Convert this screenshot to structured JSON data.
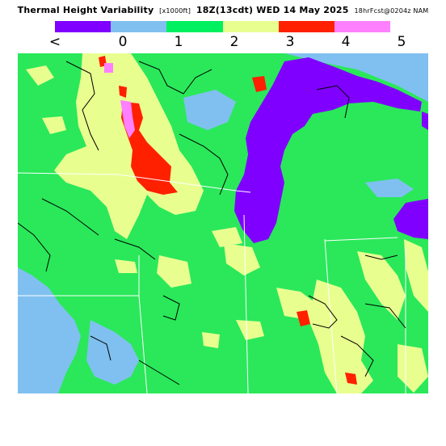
{
  "title": {
    "main": "Thermal Height Variability",
    "units": "[x1000ft]",
    "time": "18Z(13cdt) WED 14 May 2025",
    "forecast": "18hrFcst@0204z NAM"
  },
  "legend": {
    "colors": [
      "#8000ff",
      "#80c0f0",
      "#00f060",
      "#e8ff90",
      "#ff2000",
      "#ff80ff"
    ],
    "labels": [
      "<",
      "0",
      "1",
      "2",
      "3",
      "4",
      "5"
    ]
  },
  "map": {
    "land_base_color": "#2ae85a",
    "lake_color": "#8000ff",
    "boundary_color": "#000000",
    "state_line_color": "#ffffff"
  }
}
